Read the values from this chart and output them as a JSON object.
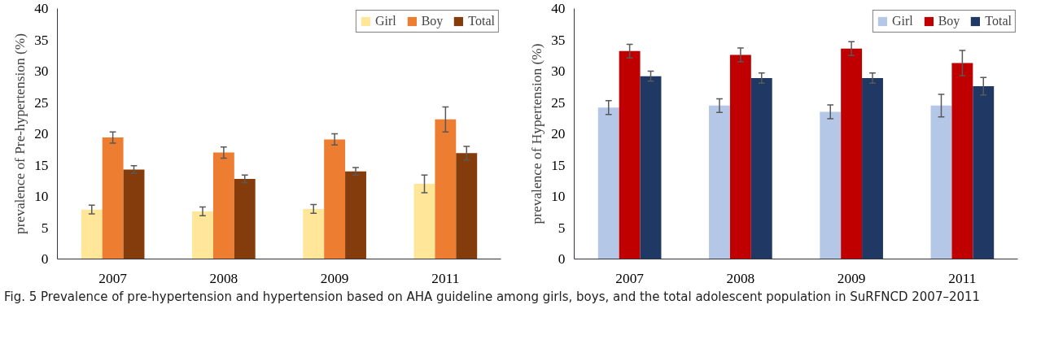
{
  "chart_data": [
    {
      "type": "bar",
      "ylabel": "prevalence of Pre-hypertension (%)",
      "categories": [
        "2007",
        "2008",
        "2009",
        "2011"
      ],
      "ylim": [
        0,
        40
      ],
      "yticks": [
        0,
        5,
        10,
        15,
        20,
        25,
        30,
        35,
        40
      ],
      "grid": false,
      "legend": "top right",
      "series": [
        {
          "name": "Girl",
          "color": "#ffe699",
          "values": [
            7.9,
            7.6,
            8.0,
            12.0
          ],
          "errors": [
            0.7,
            0.7,
            0.7,
            1.4
          ]
        },
        {
          "name": "Boy",
          "color": "#ed7d31",
          "values": [
            19.4,
            17.0,
            19.1,
            22.3
          ],
          "errors": [
            0.9,
            0.9,
            0.9,
            2.0
          ]
        },
        {
          "name": "Total",
          "color": "#843c0c",
          "values": [
            14.3,
            12.8,
            14.0,
            16.9
          ],
          "errors": [
            0.6,
            0.6,
            0.6,
            1.1
          ]
        }
      ]
    },
    {
      "type": "bar",
      "ylabel": "prevalence of Hypertension (%)",
      "categories": [
        "2007",
        "2008",
        "2009",
        "2011"
      ],
      "ylim": [
        0,
        40
      ],
      "yticks": [
        0,
        5,
        10,
        15,
        20,
        25,
        30,
        35,
        40
      ],
      "grid": false,
      "legend": "top right",
      "annotations": [
        "Fig. 5 Prevalence of pre-hypertension and hypertension based on AHA guideline among girls, boys, and the total adolescent population in SuRFNCD 2007–2011"
      ],
      "series": [
        {
          "name": "Girl",
          "color": "#b4c7e7",
          "values": [
            24.2,
            24.5,
            23.5,
            24.5
          ],
          "errors": [
            1.1,
            1.1,
            1.1,
            1.8
          ]
        },
        {
          "name": "Boy",
          "color": "#c00000",
          "values": [
            33.2,
            32.6,
            33.6,
            31.3
          ],
          "errors": [
            1.1,
            1.1,
            1.1,
            2.0
          ]
        },
        {
          "name": "Total",
          "color": "#203864",
          "values": [
            29.2,
            28.9,
            28.9,
            27.6
          ],
          "errors": [
            0.8,
            0.8,
            0.8,
            1.4
          ]
        }
      ]
    }
  ]
}
